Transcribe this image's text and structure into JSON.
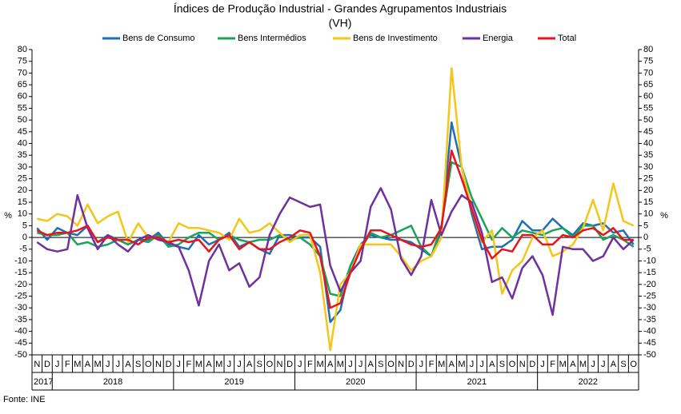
{
  "chart_data": {
    "type": "line",
    "title": "Índices de Produção Industrial - Grandes Agrupamentos Industriais",
    "subtitle": "(VH)",
    "y_label": "%",
    "y2_label": "%",
    "source": "Fonte: INE",
    "categories": [
      "N",
      "D",
      "J",
      "F",
      "M",
      "A",
      "M",
      "J",
      "J",
      "A",
      "S",
      "O",
      "N",
      "D",
      "J",
      "F",
      "M",
      "A",
      "M",
      "J",
      "J",
      "A",
      "S",
      "O",
      "N",
      "D",
      "J",
      "F",
      "M",
      "A",
      "M",
      "J",
      "J",
      "A",
      "S",
      "O",
      "N",
      "D",
      "J",
      "F",
      "M",
      "A",
      "M",
      "J",
      "J",
      "A",
      "S",
      "O",
      "N",
      "D",
      "J",
      "F",
      "M",
      "A",
      "M",
      "J",
      "J",
      "A",
      "S",
      "O"
    ],
    "years": [
      "2017",
      "2018",
      "2019",
      "2020",
      "2021",
      "2022"
    ],
    "ylim": [
      -50,
      80
    ],
    "yticks": [
      -50,
      -45,
      -40,
      -35,
      -30,
      -25,
      -20,
      -15,
      -10,
      -5,
      0,
      5,
      10,
      15,
      20,
      25,
      30,
      35,
      40,
      45,
      50,
      55,
      60,
      65,
      70,
      75,
      80
    ],
    "y2lim": [
      -50,
      80
    ],
    "y2ticks": [
      -50,
      -45,
      -40,
      -35,
      -30,
      -25,
      -20,
      -15,
      -10,
      -5,
      0,
      5,
      10,
      15,
      20,
      25,
      30,
      35,
      40,
      45,
      50,
      55,
      60,
      65,
      70,
      75,
      80
    ],
    "series": [
      {
        "name": "Bens de Consumo",
        "color": "#1f6fb5",
        "values": [
          4,
          -1,
          4,
          2,
          1,
          5,
          -2,
          1,
          -1,
          -3,
          -1,
          -1,
          2,
          -3,
          -4,
          -5,
          1,
          -3,
          -1,
          2,
          -4,
          -2,
          -5,
          -7,
          1,
          1,
          0,
          0,
          -4,
          -36,
          -31,
          -12,
          -3,
          1,
          0,
          -1,
          -1,
          -2,
          -5,
          -8,
          3,
          49,
          30,
          10,
          -5,
          -4,
          -4,
          -1,
          7,
          3,
          3,
          8,
          4,
          1,
          6,
          5,
          6,
          2,
          3,
          -3
        ]
      },
      {
        "name": "Bens Intermédios",
        "color": "#1aa35a",
        "values": [
          2,
          1,
          1,
          2,
          -3,
          -2,
          -4,
          -3,
          -1,
          -3,
          -1,
          -2,
          1,
          -4,
          -3,
          0,
          2,
          2,
          -1,
          1,
          -1,
          -2,
          -1,
          -1,
          1,
          -1,
          0,
          -3,
          -8,
          -24,
          -25,
          -12,
          -5,
          2,
          0,
          1,
          3,
          5,
          -4,
          -8,
          5,
          32,
          30,
          17,
          8,
          -1,
          4,
          0,
          3,
          2,
          1,
          3,
          4,
          0,
          5,
          5,
          -1,
          1,
          -1,
          -4
        ]
      },
      {
        "name": "Bens de Investimento",
        "color": "#f5c518",
        "values": [
          8,
          7,
          10,
          9,
          5,
          14,
          6,
          9,
          11,
          -2,
          6,
          0,
          0,
          -2,
          6,
          4,
          4,
          3,
          2,
          -1,
          8,
          2,
          3,
          6,
          2,
          -2,
          1,
          1,
          -15,
          -48,
          -20,
          -15,
          -3,
          -3,
          -3,
          -3,
          -8,
          -14,
          -10,
          -8,
          0,
          72,
          30,
          12,
          -2,
          3,
          -24,
          -14,
          -10,
          0,
          3,
          -8,
          -6,
          -3,
          4,
          16,
          3,
          23,
          7,
          5
        ]
      },
      {
        "name": "Energia",
        "color": "#7030a0",
        "values": [
          -2,
          -5,
          -6,
          -5,
          18,
          4,
          -5,
          1,
          -3,
          -6,
          -1,
          1,
          -1,
          -2,
          -4,
          -14,
          -29,
          -10,
          -3,
          -14,
          -11,
          -21,
          -17,
          1,
          10,
          17,
          15,
          13,
          14,
          -12,
          -23,
          -15,
          -10,
          13,
          21,
          12,
          -9,
          -16,
          -8,
          16,
          1,
          11,
          18,
          15,
          2,
          -19,
          -17,
          -26,
          -13,
          -8,
          -16,
          -33,
          -4,
          -5,
          -5,
          -10,
          -8,
          0,
          -5,
          -1
        ]
      },
      {
        "name": "Total",
        "color": "#e8141b",
        "values": [
          3,
          1,
          2,
          2,
          3,
          5,
          -2,
          0,
          -1,
          -1,
          -3,
          0,
          0,
          -2,
          -1,
          -2,
          -1,
          -6,
          -1,
          1,
          -5,
          -2,
          -5,
          -5,
          -2,
          0,
          3,
          2,
          -8,
          -30,
          -28,
          -15,
          -5,
          3,
          3,
          1,
          -1,
          -3,
          -4,
          -3,
          4,
          37,
          25,
          12,
          -1,
          -9,
          -5,
          -6,
          1,
          1,
          -3,
          -3,
          1,
          0,
          3,
          4,
          1,
          4,
          -1,
          -1
        ]
      }
    ]
  }
}
